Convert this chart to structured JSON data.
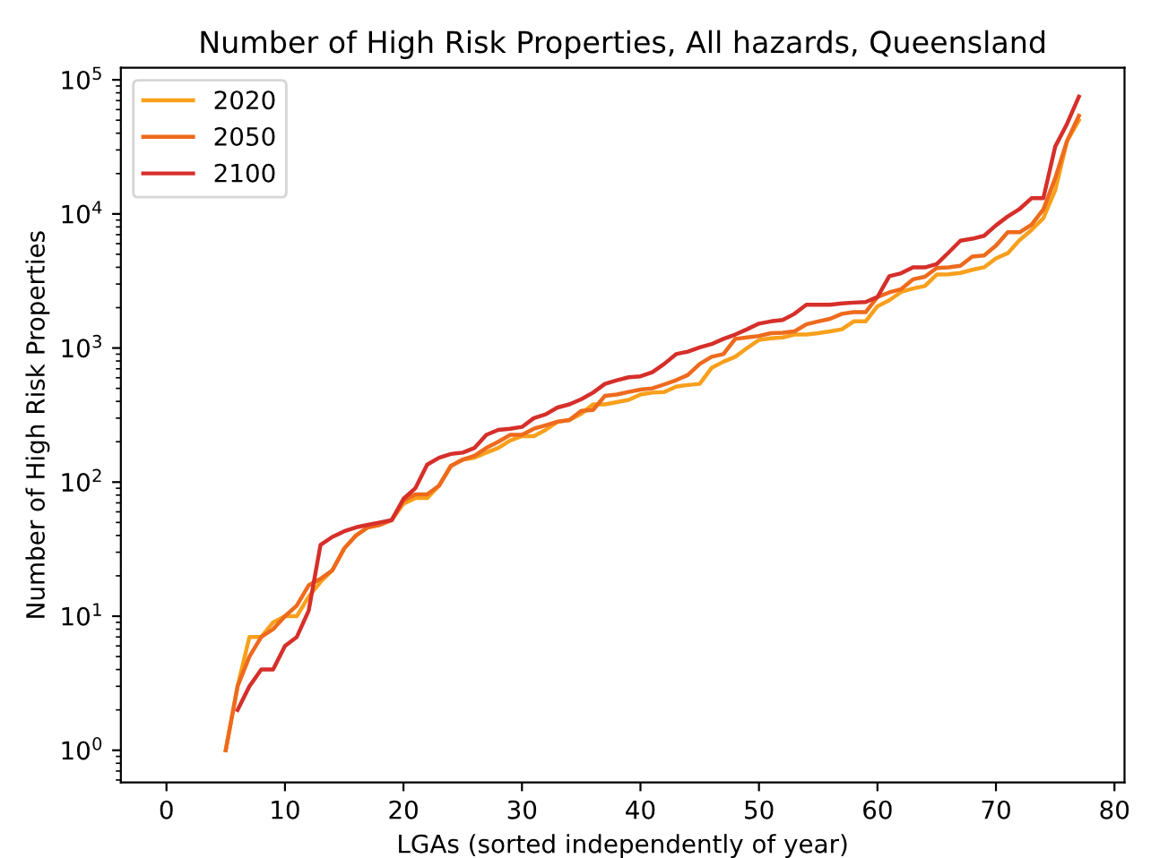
{
  "chart_data": {
    "type": "line",
    "title": "Number of High Risk Properties, All hazards, Queensland",
    "xlabel": "LGAs (sorted independently of year)",
    "ylabel": "Number of High Risk Properties",
    "series": [
      {
        "name": "2020",
        "color": "#f8a01c",
        "x": [
          5,
          6,
          7,
          8,
          9,
          10,
          11,
          12,
          13,
          14,
          15,
          16,
          17,
          18,
          19,
          20,
          21,
          22,
          23,
          24,
          25,
          26,
          27,
          28,
          29,
          30,
          31,
          32,
          33,
          34,
          35,
          36,
          37,
          38,
          39,
          40,
          41,
          42,
          43,
          44,
          45,
          46,
          47,
          48,
          49,
          50,
          51,
          52,
          53,
          54,
          55,
          56,
          57,
          58,
          59,
          60,
          61,
          62,
          63,
          64,
          65,
          66,
          67,
          68,
          69,
          70,
          71,
          72,
          73,
          74,
          75,
          76,
          77
        ],
        "values": [
          1,
          3,
          7,
          7,
          9,
          10,
          10,
          14,
          18,
          22,
          32,
          40,
          46,
          48,
          52,
          69,
          76,
          76,
          94,
          132,
          147,
          152,
          166,
          180,
          204,
          220,
          220,
          245,
          282,
          290,
          323,
          380,
          380,
          395,
          410,
          450,
          465,
          470,
          515,
          530,
          540,
          710,
          790,
          860,
          1000,
          1150,
          1180,
          1200,
          1260,
          1260,
          1290,
          1330,
          1380,
          1580,
          1580,
          2050,
          2270,
          2620,
          2780,
          2900,
          3530,
          3550,
          3630,
          3830,
          4000,
          4660,
          5100,
          6380,
          7600,
          9300,
          15000,
          35000,
          50000
        ]
      },
      {
        "name": "2050",
        "color": "#ee6a1d",
        "x": [
          5,
          6,
          7,
          8,
          9,
          10,
          11,
          12,
          13,
          14,
          15,
          16,
          17,
          18,
          19,
          20,
          21,
          22,
          23,
          24,
          25,
          26,
          27,
          28,
          29,
          30,
          31,
          32,
          33,
          34,
          35,
          36,
          37,
          38,
          39,
          40,
          41,
          42,
          43,
          44,
          45,
          46,
          47,
          48,
          49,
          50,
          51,
          52,
          53,
          54,
          55,
          56,
          57,
          58,
          59,
          60,
          61,
          62,
          63,
          64,
          65,
          66,
          67,
          68,
          69,
          70,
          71,
          72,
          73,
          74,
          75,
          76,
          77
        ],
        "values": [
          1,
          3,
          5,
          7,
          8,
          10,
          12,
          17,
          19,
          22,
          32,
          40,
          46,
          48,
          52,
          73,
          81,
          81,
          94,
          132,
          147,
          157,
          180,
          200,
          225,
          225,
          250,
          265,
          282,
          290,
          340,
          345,
          440,
          450,
          470,
          490,
          500,
          535,
          575,
          630,
          760,
          860,
          900,
          1170,
          1200,
          1230,
          1290,
          1300,
          1330,
          1500,
          1580,
          1650,
          1800,
          1850,
          1850,
          2400,
          2600,
          2750,
          3250,
          3400,
          3950,
          4000,
          4100,
          4800,
          4900,
          5800,
          7300,
          7300,
          8300,
          10800,
          18500,
          35000,
          54000
        ]
      },
      {
        "name": "2100",
        "color": "#d62f2a",
        "x": [
          6,
          7,
          8,
          9,
          10,
          11,
          12,
          13,
          14,
          15,
          16,
          17,
          18,
          19,
          20,
          21,
          22,
          23,
          24,
          25,
          26,
          27,
          28,
          29,
          30,
          31,
          32,
          33,
          34,
          35,
          36,
          37,
          38,
          39,
          40,
          41,
          42,
          43,
          44,
          45,
          46,
          47,
          48,
          49,
          50,
          51,
          52,
          53,
          54,
          55,
          56,
          57,
          58,
          59,
          60,
          61,
          62,
          63,
          64,
          65,
          66,
          67,
          68,
          69,
          70,
          71,
          72,
          73,
          74,
          75,
          76,
          77
        ],
        "values": [
          2,
          3,
          4,
          4,
          6,
          7,
          11,
          34,
          39,
          43,
          46,
          48,
          50,
          52,
          75,
          90,
          135,
          152,
          162,
          166,
          180,
          225,
          245,
          250,
          258,
          300,
          320,
          360,
          380,
          415,
          465,
          540,
          575,
          605,
          615,
          660,
          760,
          900,
          940,
          1010,
          1070,
          1170,
          1260,
          1380,
          1520,
          1580,
          1620,
          1800,
          2100,
          2100,
          2100,
          2150,
          2180,
          2200,
          2400,
          3430,
          3610,
          3990,
          3990,
          4220,
          5150,
          6320,
          6530,
          6870,
          8220,
          9580,
          10900,
          13100,
          13100,
          31800,
          47000,
          75000
        ]
      }
    ],
    "log": "y",
    "xlim": [
      -3.85,
      80.85
    ],
    "xticks": [
      0,
      10,
      20,
      30,
      40,
      50,
      60,
      70,
      80
    ],
    "ylim": [
      0.575,
      123000
    ],
    "yticks": [
      {
        "value": 1,
        "label": "10$^{0}$"
      },
      {
        "value": 10,
        "label": "10$^{1}$"
      },
      {
        "value": 100,
        "label": "10$^{2}$"
      },
      {
        "value": 1000,
        "label": "10$^{3}$"
      },
      {
        "value": 10000,
        "label": "10$^{4}$"
      },
      {
        "value": 100000,
        "label": "10$^{5}$"
      }
    ],
    "legend": "top left",
    "grid": false
  }
}
